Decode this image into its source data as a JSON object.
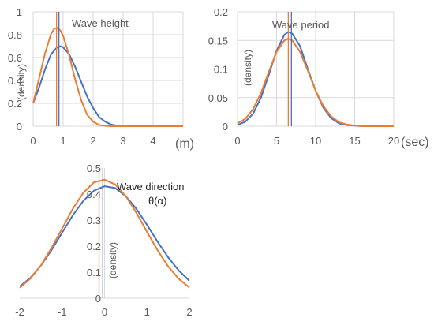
{
  "colors": {
    "blue": "#4472C4",
    "orange": "#ED7D31",
    "grid": "#D9D9D9",
    "text": "#595959"
  },
  "chart_data": [
    {
      "type": "line",
      "title": "Wave height",
      "xlabel": "(m)",
      "ylabel": "(density)",
      "xlim": [
        0,
        5
      ],
      "ylim": [
        0,
        1
      ],
      "x_ticks": [
        "0",
        "1",
        "2",
        "3",
        "4"
      ],
      "y_ticks": [
        "0",
        "0.2",
        "0.4",
        "0.6",
        "0.8",
        "1"
      ],
      "grid": true,
      "series": [
        {
          "color": "#4472C4",
          "x": [
            0,
            0.2,
            0.4,
            0.6,
            0.8,
            0.9,
            1.0,
            1.2,
            1.4,
            1.6,
            1.8,
            2.0,
            2.2,
            2.4,
            2.6,
            2.8,
            3.0,
            3.5,
            4.0,
            4.5,
            5.0
          ],
          "y": [
            0.2,
            0.34,
            0.5,
            0.63,
            0.69,
            0.7,
            0.69,
            0.63,
            0.52,
            0.39,
            0.26,
            0.16,
            0.08,
            0.04,
            0.015,
            0.005,
            0,
            0,
            0,
            0,
            0
          ]
        },
        {
          "color": "#ED7D31",
          "x": [
            0,
            0.2,
            0.4,
            0.6,
            0.7,
            0.8,
            0.9,
            1.0,
            1.2,
            1.4,
            1.6,
            1.8,
            2.0,
            2.2,
            2.4,
            2.6,
            3.0,
            3.5,
            4.0,
            4.5,
            5.0
          ],
          "y": [
            0.2,
            0.42,
            0.64,
            0.81,
            0.85,
            0.86,
            0.84,
            0.79,
            0.62,
            0.41,
            0.23,
            0.1,
            0.04,
            0.01,
            0.003,
            0,
            0,
            0,
            0,
            0,
            0
          ]
        }
      ],
      "vlines": [
        {
          "x": 0.78,
          "color": "#ED7D31"
        },
        {
          "x": 0.86,
          "color": "#4472C4"
        }
      ]
    },
    {
      "type": "line",
      "title": "Wave period",
      "xlabel": "(sec)",
      "ylabel": "(density)",
      "xlim": [
        0,
        20
      ],
      "ylim": [
        0,
        0.2
      ],
      "x_ticks": [
        "0",
        "5",
        "10",
        "15",
        "20"
      ],
      "y_ticks": [
        "0",
        "0.05",
        "0.1",
        "0.15",
        "0.2"
      ],
      "grid": true,
      "series": [
        {
          "color": "#4472C4",
          "x": [
            0,
            1,
            2,
            3,
            4,
            5,
            6,
            6.5,
            7,
            8,
            9,
            10,
            11,
            12,
            13,
            14,
            15,
            16,
            17,
            18,
            19,
            20
          ],
          "y": [
            0.002,
            0.008,
            0.022,
            0.05,
            0.09,
            0.132,
            0.16,
            0.165,
            0.162,
            0.14,
            0.1,
            0.062,
            0.032,
            0.014,
            0.005,
            0.002,
            0.001,
            0,
            0,
            0,
            0,
            0
          ]
        },
        {
          "color": "#ED7D31",
          "x": [
            0,
            1,
            2,
            3,
            4,
            5,
            6,
            6.5,
            7,
            8,
            9,
            10,
            11,
            12,
            13,
            14,
            15,
            16,
            17,
            18,
            19,
            20
          ],
          "y": [
            0.005,
            0.013,
            0.03,
            0.058,
            0.095,
            0.13,
            0.15,
            0.153,
            0.15,
            0.13,
            0.097,
            0.062,
            0.035,
            0.017,
            0.007,
            0.003,
            0.001,
            0,
            0,
            0,
            0,
            0
          ]
        }
      ],
      "vlines": [
        {
          "x": 6.5,
          "color": "#ED7D31"
        },
        {
          "x": 6.9,
          "color": "#4472C4"
        }
      ]
    },
    {
      "type": "line",
      "title": "Wave direction",
      "subtitle": "θ(α)",
      "ylabel": "(density)",
      "xlim": [
        -2,
        2
      ],
      "ylim": [
        0,
        0.5
      ],
      "x_ticks": [
        "-2",
        "-1",
        "0",
        "1",
        "2"
      ],
      "y_ticks": [
        "0",
        "0.1",
        "0.2",
        "0.3",
        "0.4",
        "0.5"
      ],
      "grid": false,
      "series": [
        {
          "color": "#4472C4",
          "x": [
            -2,
            -1.75,
            -1.5,
            -1.25,
            -1,
            -0.75,
            -0.5,
            -0.25,
            0,
            0.25,
            0.5,
            0.75,
            1,
            1.25,
            1.5,
            1.75,
            2
          ],
          "y": [
            0.045,
            0.078,
            0.125,
            0.185,
            0.252,
            0.318,
            0.374,
            0.413,
            0.43,
            0.423,
            0.392,
            0.343,
            0.282,
            0.217,
            0.157,
            0.106,
            0.067
          ]
        },
        {
          "color": "#ED7D31",
          "x": [
            -2,
            -1.75,
            -1.5,
            -1.25,
            -1,
            -0.75,
            -0.5,
            -0.25,
            0,
            0.25,
            0.5,
            0.75,
            1,
            1.25,
            1.5,
            1.75,
            2
          ],
          "y": [
            0.04,
            0.075,
            0.126,
            0.193,
            0.268,
            0.343,
            0.405,
            0.445,
            0.455,
            0.437,
            0.392,
            0.328,
            0.255,
            0.184,
            0.122,
            0.074,
            0.041
          ]
        }
      ],
      "vlines": [
        {
          "x": -0.13,
          "color": "#ED7D31"
        },
        {
          "x": -0.04,
          "color": "#4472C4"
        }
      ]
    }
  ]
}
